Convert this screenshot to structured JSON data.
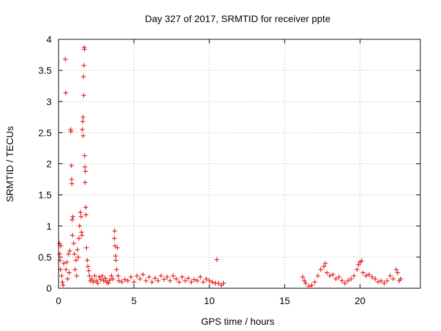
{
  "chart_data": {
    "type": "scatter",
    "title": "Day 327 of 2017, SRMTID for receiver ppte",
    "xlabel": "GPS time / hours",
    "ylabel": "SRMTID / TECUs",
    "xlim": [
      0,
      24
    ],
    "ylim": [
      0,
      4
    ],
    "xticks": [
      0,
      5,
      10,
      15,
      20
    ],
    "yticks": [
      0,
      0.5,
      1,
      1.5,
      2,
      2.5,
      3,
      3.5,
      4
    ],
    "grid": true,
    "marker": "plus",
    "color": "#e00000",
    "series": [
      {
        "name": "ppte",
        "points": [
          [
            0.05,
            0.72
          ],
          [
            0.08,
            0.55
          ],
          [
            0.1,
            0.45
          ],
          [
            0.12,
            0.3
          ],
          [
            0.15,
            0.68
          ],
          [
            0.2,
            0.2
          ],
          [
            0.25,
            0.1
          ],
          [
            0.3,
            0.05
          ],
          [
            0.35,
            0.4
          ],
          [
            0.45,
            3.68
          ],
          [
            0.48,
            3.14
          ],
          [
            0.5,
            0.3
          ],
          [
            0.55,
            0.42
          ],
          [
            0.6,
            0.15
          ],
          [
            0.65,
            0.55
          ],
          [
            0.7,
            0.25
          ],
          [
            0.75,
            0.6
          ],
          [
            0.8,
            2.55
          ],
          [
            0.82,
            2.52
          ],
          [
            0.85,
            1.97
          ],
          [
            0.87,
            1.75
          ],
          [
            0.88,
            1.68
          ],
          [
            0.9,
            1.1
          ],
          [
            0.92,
            0.85
          ],
          [
            0.95,
            1.15
          ],
          [
            1.0,
            0.72
          ],
          [
            1.05,
            0.55
          ],
          [
            1.1,
            0.3
          ],
          [
            1.15,
            0.45
          ],
          [
            1.2,
            0.2
          ],
          [
            1.25,
            0.62
          ],
          [
            1.3,
            0.5
          ],
          [
            1.35,
            0.8
          ],
          [
            1.4,
            1.0
          ],
          [
            1.45,
            1.22
          ],
          [
            1.5,
            1.15
          ],
          [
            1.52,
            0.9
          ],
          [
            1.55,
            0.85
          ],
          [
            1.57,
            2.55
          ],
          [
            1.6,
            2.68
          ],
          [
            1.62,
            2.75
          ],
          [
            1.63,
            2.45
          ],
          [
            1.65,
            3.4
          ],
          [
            1.67,
            3.1
          ],
          [
            1.68,
            3.58
          ],
          [
            1.7,
            3.87
          ],
          [
            1.72,
            3.84
          ],
          [
            1.73,
            2.13
          ],
          [
            1.75,
            1.95
          ],
          [
            1.76,
            1.7
          ],
          [
            1.78,
            1.88
          ],
          [
            1.8,
            1.3
          ],
          [
            1.82,
            1.18
          ],
          [
            1.85,
            0.65
          ],
          [
            1.9,
            0.45
          ],
          [
            1.95,
            0.35
          ],
          [
            2.0,
            0.28
          ],
          [
            2.05,
            0.2
          ],
          [
            2.1,
            0.12
          ],
          [
            2.2,
            0.15
          ],
          [
            2.3,
            0.1
          ],
          [
            2.4,
            0.2
          ],
          [
            2.5,
            0.12
          ],
          [
            2.6,
            0.08
          ],
          [
            2.7,
            0.18
          ],
          [
            2.8,
            0.14
          ],
          [
            2.9,
            0.2
          ],
          [
            3.0,
            0.12
          ],
          [
            3.1,
            0.16
          ],
          [
            3.2,
            0.1
          ],
          [
            3.3,
            0.08
          ],
          [
            3.4,
            0.13
          ],
          [
            3.5,
            0.2
          ],
          [
            3.6,
            0.15
          ],
          [
            3.7,
            0.8
          ],
          [
            3.72,
            0.92
          ],
          [
            3.75,
            0.68
          ],
          [
            3.78,
            0.52
          ],
          [
            3.8,
            0.45
          ],
          [
            3.85,
            0.3
          ],
          [
            3.9,
            0.65
          ],
          [
            3.95,
            0.2
          ],
          [
            4.0,
            0.12
          ],
          [
            4.2,
            0.1
          ],
          [
            4.4,
            0.14
          ],
          [
            4.6,
            0.12
          ],
          [
            4.8,
            0.18
          ],
          [
            5.0,
            0.1
          ],
          [
            5.2,
            0.2
          ],
          [
            5.4,
            0.15
          ],
          [
            5.6,
            0.22
          ],
          [
            5.8,
            0.12
          ],
          [
            6.0,
            0.18
          ],
          [
            6.2,
            0.1
          ],
          [
            6.4,
            0.16
          ],
          [
            6.6,
            0.12
          ],
          [
            6.8,
            0.2
          ],
          [
            7.0,
            0.14
          ],
          [
            7.2,
            0.18
          ],
          [
            7.4,
            0.12
          ],
          [
            7.6,
            0.2
          ],
          [
            7.8,
            0.15
          ],
          [
            8.0,
            0.1
          ],
          [
            8.2,
            0.18
          ],
          [
            8.4,
            0.12
          ],
          [
            8.6,
            0.16
          ],
          [
            8.8,
            0.1
          ],
          [
            9.0,
            0.14
          ],
          [
            9.2,
            0.12
          ],
          [
            9.4,
            0.18
          ],
          [
            9.6,
            0.1
          ],
          [
            9.8,
            0.15
          ],
          [
            10.0,
            0.12
          ],
          [
            10.2,
            0.1
          ],
          [
            10.4,
            0.08
          ],
          [
            10.5,
            0.46
          ],
          [
            10.6,
            0.08
          ],
          [
            10.8,
            0.05
          ],
          [
            10.95,
            0.08
          ],
          [
            16.2,
            0.18
          ],
          [
            16.3,
            0.12
          ],
          [
            16.4,
            0.08
          ],
          [
            16.6,
            0.03
          ],
          [
            16.8,
            0.05
          ],
          [
            17.0,
            0.1
          ],
          [
            17.2,
            0.2
          ],
          [
            17.4,
            0.3
          ],
          [
            17.6,
            0.35
          ],
          [
            17.7,
            0.4
          ],
          [
            17.8,
            0.25
          ],
          [
            18.0,
            0.2
          ],
          [
            18.2,
            0.22
          ],
          [
            18.4,
            0.15
          ],
          [
            18.6,
            0.18
          ],
          [
            18.8,
            0.12
          ],
          [
            19.0,
            0.08
          ],
          [
            19.2,
            0.12
          ],
          [
            19.4,
            0.15
          ],
          [
            19.6,
            0.2
          ],
          [
            19.8,
            0.3
          ],
          [
            19.9,
            0.38
          ],
          [
            20.0,
            0.42
          ],
          [
            20.1,
            0.44
          ],
          [
            20.2,
            0.25
          ],
          [
            20.4,
            0.2
          ],
          [
            20.6,
            0.22
          ],
          [
            20.8,
            0.18
          ],
          [
            21.0,
            0.15
          ],
          [
            21.2,
            0.1
          ],
          [
            21.4,
            0.12
          ],
          [
            21.6,
            0.08
          ],
          [
            21.8,
            0.12
          ],
          [
            22.0,
            0.2
          ],
          [
            22.2,
            0.15
          ],
          [
            22.4,
            0.3
          ],
          [
            22.5,
            0.25
          ],
          [
            22.6,
            0.12
          ],
          [
            22.7,
            0.15
          ]
        ]
      }
    ]
  }
}
